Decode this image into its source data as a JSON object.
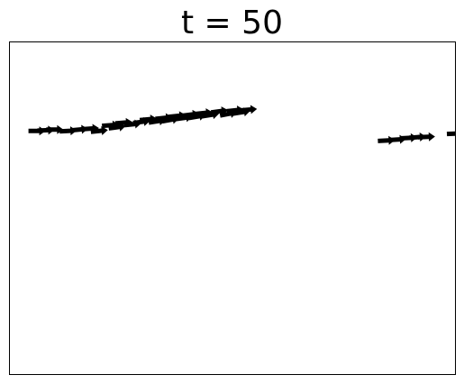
{
  "title": "t = 50",
  "colors": {
    "arrow": "#000000",
    "frame": "#000000",
    "background": "#ffffff"
  },
  "chart_data": {
    "type": "scatter",
    "marker": "arrow-right",
    "grid": false,
    "xlim": [
      0,
      1
    ],
    "ylim": [
      0,
      1
    ],
    "groups": [
      {
        "points": [
          {
            "x": 0.06,
            "y": 0.733,
            "angle": 0
          },
          {
            "x": 0.08,
            "y": 0.735,
            "angle": -2
          },
          {
            "x": 0.1,
            "y": 0.737,
            "angle": 0
          },
          {
            "x": 0.13,
            "y": 0.733,
            "angle": -3
          },
          {
            "x": 0.155,
            "y": 0.737,
            "angle": -5
          },
          {
            "x": 0.18,
            "y": 0.74,
            "angle": -4
          },
          {
            "x": 0.2,
            "y": 0.733,
            "angle": -6
          },
          {
            "x": 0.225,
            "y": 0.75,
            "angle": -4
          },
          {
            "x": 0.24,
            "y": 0.744,
            "angle": -8
          },
          {
            "x": 0.255,
            "y": 0.758,
            "angle": -5
          },
          {
            "x": 0.275,
            "y": 0.753,
            "angle": -6
          },
          {
            "x": 0.295,
            "y": 0.76,
            "angle": -7
          },
          {
            "x": 0.31,
            "y": 0.768,
            "angle": -5
          },
          {
            "x": 0.33,
            "y": 0.762,
            "angle": -9
          },
          {
            "x": 0.345,
            "y": 0.772,
            "angle": -6
          },
          {
            "x": 0.36,
            "y": 0.766,
            "angle": -10
          },
          {
            "x": 0.375,
            "y": 0.778,
            "angle": -6
          },
          {
            "x": 0.39,
            "y": 0.772,
            "angle": -8
          },
          {
            "x": 0.405,
            "y": 0.782,
            "angle": -7
          },
          {
            "x": 0.42,
            "y": 0.776,
            "angle": -10
          },
          {
            "x": 0.435,
            "y": 0.787,
            "angle": -6
          },
          {
            "x": 0.45,
            "y": 0.781,
            "angle": -9
          },
          {
            "x": 0.47,
            "y": 0.792,
            "angle": -8
          },
          {
            "x": 0.49,
            "y": 0.784,
            "angle": -11
          },
          {
            "x": 0.505,
            "y": 0.795,
            "angle": -6
          },
          {
            "x": 0.52,
            "y": 0.789,
            "angle": -9
          },
          {
            "x": 0.535,
            "y": 0.797,
            "angle": -5
          }
        ]
      },
      {
        "points": [
          {
            "x": 0.845,
            "y": 0.704,
            "angle": -3
          },
          {
            "x": 0.87,
            "y": 0.707,
            "angle": -4
          },
          {
            "x": 0.895,
            "y": 0.712,
            "angle": -3
          },
          {
            "x": 0.915,
            "y": 0.714,
            "angle": -4
          },
          {
            "x": 0.935,
            "y": 0.715,
            "angle": -2
          },
          {
            "x": 1.0,
            "y": 0.725,
            "angle": -3
          }
        ]
      }
    ]
  }
}
